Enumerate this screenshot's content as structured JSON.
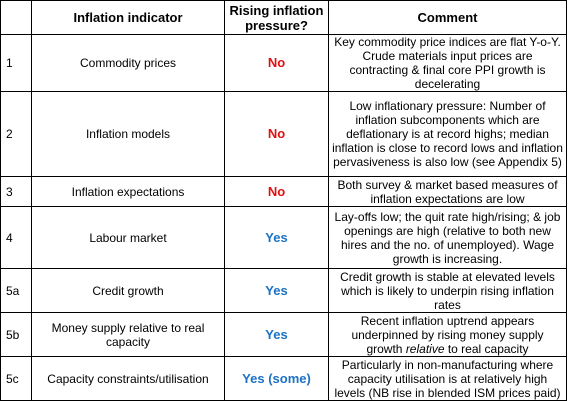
{
  "headers": {
    "num": "",
    "indicator": "Inflation indicator",
    "rising": "Rising inflation pressure?",
    "comment": "Comment"
  },
  "colors": {
    "no": "#e01010",
    "yes": "#1c72c4"
  },
  "rows": [
    {
      "num": "1",
      "indicator": "Commodity prices",
      "rising": "No",
      "rising_type": "no",
      "comment": "Key commodity price indices are flat Y-o-Y. Crude materials input prices are contracting & final core PPI growth is decelerating"
    },
    {
      "num": "2",
      "indicator": "Inflation models",
      "rising": "No",
      "rising_type": "no",
      "comment": "Low inflationary pressure: Number of inflation subcomponents which are deflationary is at record highs; median inflation is close to record lows and inflation pervasiveness is also low (see Appendix 5)"
    },
    {
      "num": "3",
      "indicator": "Inflation expectations",
      "rising": "No",
      "rising_type": "no",
      "comment": "Both survey & market based measures of inflation expectations are low"
    },
    {
      "num": "4",
      "indicator": "Labour market",
      "rising": "Yes",
      "rising_type": "yes",
      "comment": "Lay-offs low; the quit rate high/rising; & job openings are high (relative to both new hires and the no. of unemployed). Wage growth is increasing."
    },
    {
      "num": "5a",
      "indicator": "Credit growth",
      "rising": "Yes",
      "rising_type": "yes",
      "comment": "Credit growth is stable at elevated levels which is likely to underpin rising inflation rates"
    },
    {
      "num": "5b",
      "indicator": "Money supply relative to real capacity",
      "rising": "Yes",
      "rising_type": "yes",
      "comment_pre": "Recent inflation uptrend appears underpinned by rising money supply growth",
      "comment_em": "relative",
      "comment_post": "to real capacity"
    },
    {
      "num": "5c",
      "indicator": "Capacity constraints/utilisation",
      "rising": "Yes (some)",
      "rising_type": "yes",
      "comment": "Particularly in non-manufacturing where capacity utilisation is at relatively high levels (NB rise in blended ISM prices paid)"
    }
  ]
}
